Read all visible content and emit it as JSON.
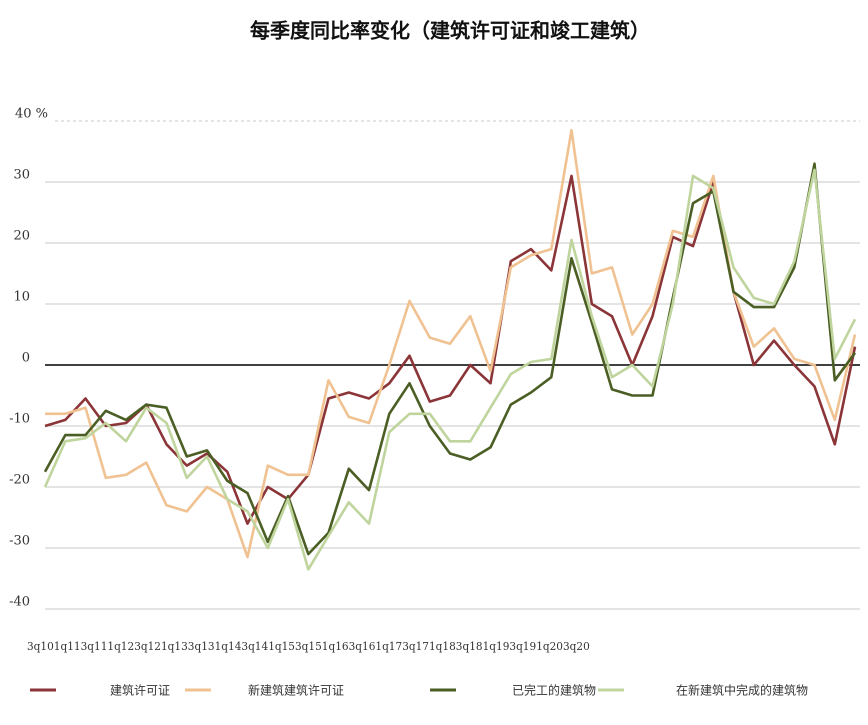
{
  "chart_data": {
    "type": "line",
    "title": "每季度同比率变化（建筑许可证和竣工建筑）",
    "categories": [
      "3q10",
      null,
      "1q11",
      null,
      "3q11",
      null,
      "1q12",
      null,
      "3q12",
      null,
      "1q13",
      null,
      "3q13",
      null,
      "1q14",
      null,
      "3q14",
      null,
      "1q15",
      null,
      "3q15",
      null,
      "1q16",
      null,
      "3q16",
      null,
      "1q17",
      null,
      "3q17",
      null,
      "1q18",
      null,
      "3q18",
      null,
      "1q19",
      null,
      "3q19",
      null,
      "1q20",
      null,
      "3q20"
    ],
    "series": [
      {
        "name": "建筑许可证",
        "color": "#8b3538",
        "values": [
          -10,
          -9,
          -5.5,
          -10,
          -9.5,
          -6.5,
          -13,
          -16.5,
          -14.5,
          -17.5,
          -26,
          -20,
          -22,
          -18,
          -5.5,
          -4.5,
          -5.5,
          -3,
          1.5,
          -6,
          -5,
          0,
          -3,
          17,
          19,
          15.5,
          31,
          10,
          8,
          0,
          8,
          21,
          19.5,
          30,
          12,
          0,
          4,
          0,
          -3.5,
          -13,
          3
        ]
      },
      {
        "name": "新建筑建筑许可证",
        "color": "#f0c292",
        "values": [
          -8,
          -8,
          -7,
          -18.5,
          -18,
          -16,
          -23,
          -24,
          -20,
          -22,
          -31.5,
          -16.5,
          -18,
          -18,
          -2.5,
          -8.5,
          -9.5,
          0,
          10.5,
          4.5,
          3.5,
          8,
          -1,
          16,
          18,
          19,
          38.5,
          15,
          16,
          5,
          10,
          22,
          21,
          31,
          12,
          3,
          6,
          1,
          0,
          -9,
          5
        ]
      },
      {
        "name": "已完工的建筑物",
        "color": "#4b5e24",
        "values": [
          -17.5,
          -11.5,
          -11.5,
          -7.5,
          -9,
          -6.5,
          -7,
          -15,
          -14,
          -19,
          -21,
          -29,
          -21.5,
          -31,
          -27.5,
          -17,
          -20.5,
          -8,
          -3,
          -10,
          -14.5,
          -15.5,
          -13.5,
          -6.5,
          -4.5,
          -2,
          17.5,
          7,
          -4,
          -5,
          -5,
          11,
          26.5,
          28.5,
          12,
          9.5,
          9.5,
          16,
          33,
          -2.5,
          2
        ]
      },
      {
        "name": "在新建筑中完成的建筑物",
        "color": "#bfd59d",
        "values": [
          -20,
          -12.5,
          -12,
          -9.5,
          -12.5,
          -7,
          -9.5,
          -18.5,
          -15,
          -22,
          -24,
          -30,
          -22,
          -33.5,
          -28,
          -22.5,
          -26,
          -11,
          -8,
          -8,
          -12.5,
          -12.5,
          -7,
          -1.5,
          0.5,
          1,
          20.5,
          8,
          -2,
          0,
          -3.5,
          10,
          31,
          29,
          16,
          11,
          10,
          17,
          32,
          1,
          7.5
        ]
      }
    ],
    "ylim": [
      -40,
      40
    ],
    "yticks": [
      -40,
      -30,
      -20,
      -10,
      0,
      10,
      20,
      30,
      {
        "value": 40,
        "label": "40 %"
      }
    ],
    "grid": true
  }
}
